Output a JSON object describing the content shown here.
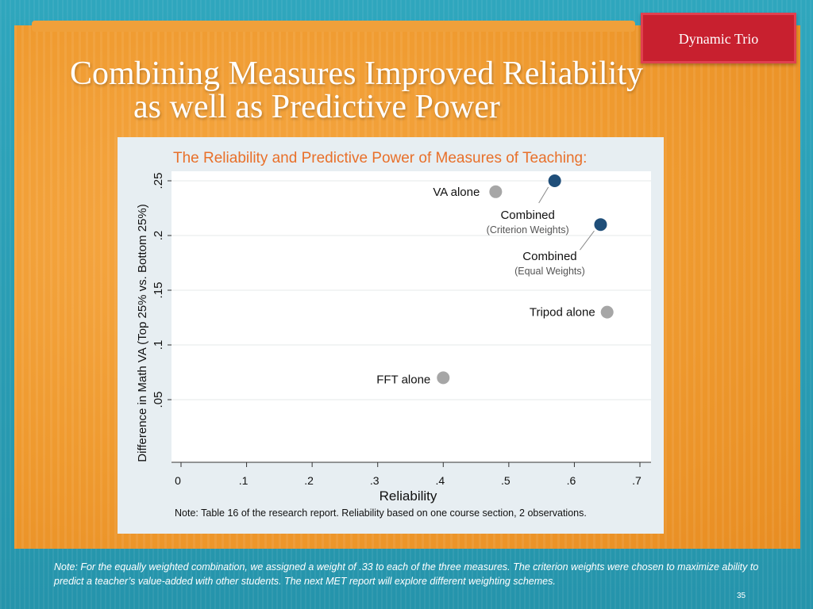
{
  "badge": "Dynamic Trio",
  "title": {
    "line1": "Combining Measures Improved Reliability",
    "line2": "as well as Predictive Power"
  },
  "chart_title": "The Reliability and Predictive Power of Measures of Teaching:",
  "chart_note": "Note:   Table 16 of the research report.  Reliability based on one course section, 2 observations.",
  "footer_note": "Note:   For the equally weighted combination, we assigned a weight of .33 to each of the three measures.  The criterion weights were chosen to maximize ability to predict a teacher’s value-added with other students.  The next MET report will explore different weighting schemes.",
  "page_number": "35",
  "colors": {
    "single": "#a6a6a6",
    "combined": "#1f4e79",
    "chart_title": "#e8702a",
    "badge": "#c8202f"
  },
  "chart_data": {
    "type": "scatter",
    "title": "The Reliability and Predictive Power of Measures of Teaching:",
    "xlabel": "Reliability",
    "ylabel": "Difference in Math VA (Top 25% vs. Bottom 25%)",
    "xlim": [
      0,
      0.7
    ],
    "ylim": [
      0,
      0.25
    ],
    "xticks": [
      "0",
      ".1",
      ".2",
      ".3",
      ".4",
      ".5",
      ".6",
      ".7"
    ],
    "yticks": [
      ".05",
      ".1",
      ".15",
      ".2",
      ".25"
    ],
    "grid": true,
    "points": [
      {
        "label": "VA alone",
        "sublabel": "",
        "x": 0.48,
        "y": 0.24,
        "group": "single"
      },
      {
        "label": "Combined",
        "sublabel": "(Criterion Weights)",
        "x": 0.57,
        "y": 0.25,
        "group": "combined"
      },
      {
        "label": "Combined",
        "sublabel": "(Equal Weights)",
        "x": 0.64,
        "y": 0.21,
        "group": "combined"
      },
      {
        "label": "Tripod alone",
        "sublabel": "",
        "x": 0.65,
        "y": 0.13,
        "group": "single"
      },
      {
        "label": "FFT alone",
        "sublabel": "",
        "x": 0.4,
        "y": 0.07,
        "group": "single"
      }
    ]
  }
}
